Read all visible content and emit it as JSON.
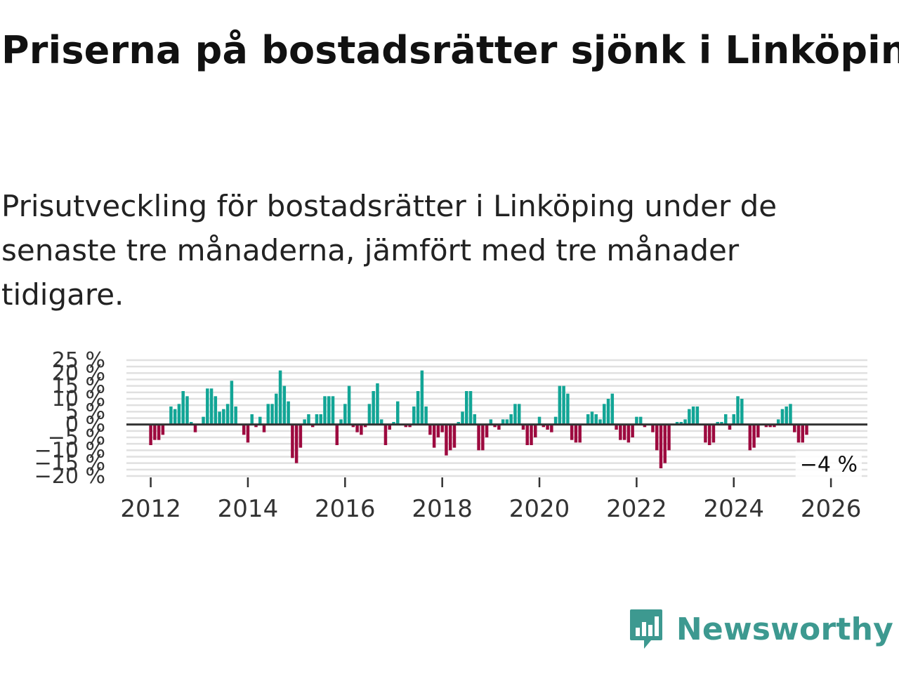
{
  "title": "Priserna på bostadsrätter sjönk i Linköping",
  "subtitle": "Prisutveckling för bostadsrätter i Linköping under de senaste tre månaderna, jämfört med tre månader tidigare.",
  "brand": "Newsworthy",
  "colors": {
    "positive": "#12a596",
    "negative": "#9d0a3f",
    "zero_line": "#333333",
    "grid": "#e0e0e0",
    "brand": "#3d9990"
  },
  "chart_data": {
    "type": "bar",
    "title": "Prisutveckling för bostadsrätter i Linköping",
    "xlabel": "",
    "ylabel": "",
    "ylim": [
      -20,
      25
    ],
    "y_ticks": [
      -20,
      -15,
      -10,
      -5,
      0,
      5,
      10,
      15,
      20,
      25
    ],
    "y_tick_labels": [
      "−20 %",
      "−15 %",
      "−10 %",
      "−5 %",
      "0 %",
      "5 %",
      "10 %",
      "15 %",
      "20 %",
      "25 %"
    ],
    "xlim": [
      2011.5,
      2026.75
    ],
    "x_ticks": [
      2012,
      2014,
      2016,
      2018,
      2020,
      2022,
      2024,
      2026
    ],
    "x_tick_labels": [
      "2012",
      "2014",
      "2016",
      "2018",
      "2020",
      "2022",
      "2024",
      "2026"
    ],
    "start": 2012.0,
    "step": 0.0833333,
    "values": [
      -8,
      -6,
      -6,
      -4,
      0,
      7,
      6,
      8,
      13,
      11,
      1,
      -3,
      0,
      3,
      14,
      14,
      11,
      5,
      6,
      8,
      17,
      7,
      0,
      -4,
      -7,
      4,
      -1,
      3,
      -3,
      8,
      8,
      12,
      21,
      15,
      9,
      -13,
      -15,
      -9,
      2,
      4,
      -1,
      4,
      4,
      11,
      11,
      11,
      -8,
      2,
      8,
      15,
      -1,
      -3,
      -4,
      -1,
      8,
      13,
      16,
      2,
      -8,
      -2,
      1,
      9,
      0,
      -1,
      -1,
      7,
      13,
      21,
      7,
      -4,
      -9,
      -5,
      -3,
      -12,
      -10,
      -9,
      1,
      5,
      13,
      13,
      4,
      -10,
      -10,
      -5,
      2,
      -1,
      -2,
      2,
      2,
      4,
      8,
      8,
      -2,
      -8,
      -8,
      -5,
      3,
      -1,
      -2,
      -3,
      3,
      15,
      15,
      12,
      -6,
      -7,
      -7,
      0,
      4,
      5,
      4,
      2,
      8,
      10,
      12,
      -2,
      -6,
      -6,
      -7,
      -5,
      3,
      3,
      -1,
      0,
      -3,
      -10,
      -17,
      -15,
      -10,
      0,
      1,
      1,
      2,
      6,
      7,
      7,
      0,
      -7,
      -8,
      -7,
      1,
      1,
      4,
      -2,
      4,
      11,
      10,
      0,
      -10,
      -9,
      -5,
      0,
      -1,
      -1,
      -1,
      2,
      6,
      7,
      8,
      -3,
      -7,
      -7,
      -4
    ],
    "annotation": {
      "label": "−4 %",
      "value": -4
    }
  }
}
